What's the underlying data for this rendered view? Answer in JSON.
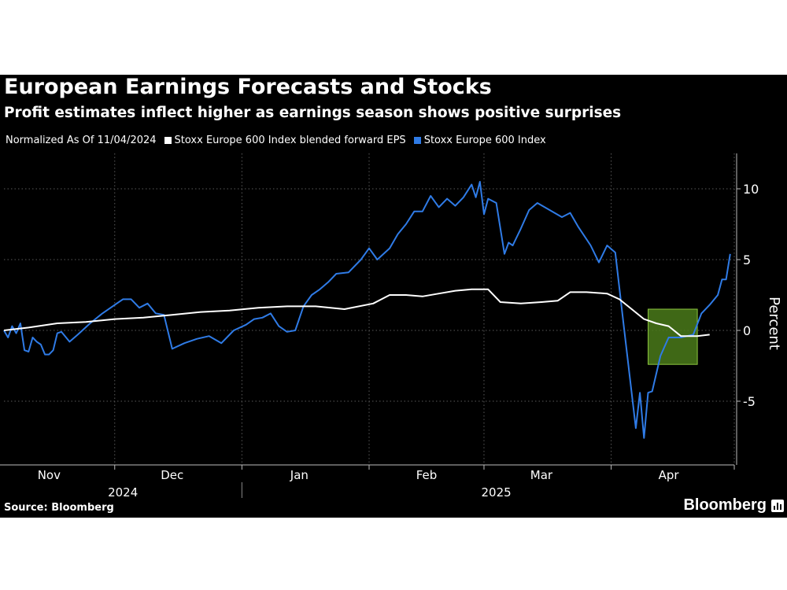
{
  "title": "European Earnings Forecasts and Stocks",
  "subtitle": "Profit estimates inflect higher as earnings season shows positive surprises",
  "legend": {
    "normalized_note": "Normalized As Of 11/04/2024",
    "items": [
      {
        "label": "Stoxx Europe 600 Index blended forward EPS",
        "color": "#ffffff"
      },
      {
        "label": "Stoxx Europe 600 Index",
        "color": "#2f7be6"
      }
    ]
  },
  "source": "Source: Bloomberg",
  "brand": "Bloomberg",
  "colors": {
    "background": "#000000",
    "eps_line": "#ffffff",
    "index_line": "#2f7be6",
    "highlight_fill": "#4a7a1a",
    "highlight_border": "#8cc63f"
  },
  "chart_data": {
    "type": "line",
    "ylabel": "Percent",
    "ylim": [
      -9.5,
      12.5
    ],
    "y_ticks": [
      10,
      5,
      0,
      -5
    ],
    "y_tick_labels": [
      "10",
      "5",
      "0",
      "-5"
    ],
    "x_unit": "date",
    "xlim": [
      "2024-11-04",
      "2025-05-01"
    ],
    "x_month_ticks": [
      {
        "label": "Nov",
        "date": "2024-11-15"
      },
      {
        "label": "Dec",
        "date": "2024-12-15"
      },
      {
        "label": "Jan",
        "date": "2025-01-15"
      },
      {
        "label": "Feb",
        "date": "2025-02-15"
      },
      {
        "label": "Mar",
        "date": "2025-03-15"
      },
      {
        "label": "Apr",
        "date": "2025-04-15"
      }
    ],
    "x_gridlines": [
      "2024-12-01",
      "2025-01-01",
      "2025-02-01",
      "2025-03-01",
      "2025-04-01",
      "2025-05-01"
    ],
    "x_years": [
      {
        "label": "2024",
        "date": "2024-12-03"
      },
      {
        "label": "2025",
        "date": "2025-03-04"
      }
    ],
    "highlight": {
      "x_start": "2025-04-10",
      "x_end": "2025-04-22",
      "y_min": -2.4,
      "y_max": 1.5
    },
    "series": [
      {
        "name": "Stoxx Europe 600 Index blended forward EPS",
        "color": "#ffffff",
        "points": [
          [
            "2024-11-04",
            0.0
          ],
          [
            "2024-11-10",
            0.2
          ],
          [
            "2024-11-17",
            0.5
          ],
          [
            "2024-11-24",
            0.6
          ],
          [
            "2024-12-01",
            0.8
          ],
          [
            "2024-12-08",
            0.9
          ],
          [
            "2024-12-15",
            1.1
          ],
          [
            "2024-12-22",
            1.3
          ],
          [
            "2024-12-29",
            1.4
          ],
          [
            "2025-01-05",
            1.6
          ],
          [
            "2025-01-12",
            1.7
          ],
          [
            "2025-01-19",
            1.7
          ],
          [
            "2025-01-26",
            1.5
          ],
          [
            "2025-02-02",
            1.9
          ],
          [
            "2025-02-06",
            2.5
          ],
          [
            "2025-02-10",
            2.5
          ],
          [
            "2025-02-14",
            2.4
          ],
          [
            "2025-02-18",
            2.6
          ],
          [
            "2025-02-22",
            2.8
          ],
          [
            "2025-02-26",
            2.9
          ],
          [
            "2025-03-02",
            2.9
          ],
          [
            "2025-03-05",
            2.0
          ],
          [
            "2025-03-10",
            1.9
          ],
          [
            "2025-03-15",
            2.0
          ],
          [
            "2025-03-19",
            2.1
          ],
          [
            "2025-03-22",
            2.7
          ],
          [
            "2025-03-26",
            2.7
          ],
          [
            "2025-03-31",
            2.6
          ],
          [
            "2025-04-03",
            2.2
          ],
          [
            "2025-04-06",
            1.5
          ],
          [
            "2025-04-09",
            0.8
          ],
          [
            "2025-04-12",
            0.5
          ],
          [
            "2025-04-15",
            0.3
          ],
          [
            "2025-04-18",
            -0.4
          ],
          [
            "2025-04-22",
            -0.4
          ],
          [
            "2025-04-25",
            -0.3
          ]
        ]
      },
      {
        "name": "Stoxx Europe 600 Index",
        "color": "#2f7be6",
        "points": [
          [
            "2024-11-04",
            0.0
          ],
          [
            "2024-11-05",
            -0.5
          ],
          [
            "2024-11-06",
            0.3
          ],
          [
            "2024-11-07",
            -0.2
          ],
          [
            "2024-11-08",
            0.5
          ],
          [
            "2024-11-09",
            -1.4
          ],
          [
            "2024-11-10",
            -1.5
          ],
          [
            "2024-11-11",
            -0.5
          ],
          [
            "2024-11-12",
            -0.8
          ],
          [
            "2024-11-13",
            -1.0
          ],
          [
            "2024-11-14",
            -1.7
          ],
          [
            "2024-11-15",
            -1.7
          ],
          [
            "2024-11-16",
            -1.4
          ],
          [
            "2024-11-17",
            -0.2
          ],
          [
            "2024-11-18",
            -0.1
          ],
          [
            "2024-11-20",
            -0.8
          ],
          [
            "2024-11-22",
            -0.3
          ],
          [
            "2024-11-25",
            0.5
          ],
          [
            "2024-11-28",
            1.2
          ],
          [
            "2024-12-01",
            1.8
          ],
          [
            "2024-12-03",
            2.2
          ],
          [
            "2024-12-05",
            2.2
          ],
          [
            "2024-12-07",
            1.6
          ],
          [
            "2024-12-09",
            1.9
          ],
          [
            "2024-12-11",
            1.2
          ],
          [
            "2024-12-13",
            1.1
          ],
          [
            "2024-12-15",
            -1.3
          ],
          [
            "2024-12-18",
            -0.9
          ],
          [
            "2024-12-21",
            -0.6
          ],
          [
            "2024-12-24",
            -0.4
          ],
          [
            "2024-12-27",
            -0.9
          ],
          [
            "2024-12-30",
            0.0
          ],
          [
            "2025-01-02",
            0.4
          ],
          [
            "2025-01-04",
            0.8
          ],
          [
            "2025-01-06",
            0.9
          ],
          [
            "2025-01-08",
            1.2
          ],
          [
            "2025-01-10",
            0.3
          ],
          [
            "2025-01-12",
            -0.1
          ],
          [
            "2025-01-14",
            0.0
          ],
          [
            "2025-01-16",
            1.7
          ],
          [
            "2025-01-18",
            2.5
          ],
          [
            "2025-01-20",
            2.9
          ],
          [
            "2025-01-22",
            3.4
          ],
          [
            "2025-01-24",
            4.0
          ],
          [
            "2025-01-27",
            4.1
          ],
          [
            "2025-01-30",
            5.0
          ],
          [
            "2025-02-01",
            5.8
          ],
          [
            "2025-02-03",
            5.0
          ],
          [
            "2025-02-06",
            5.8
          ],
          [
            "2025-02-08",
            6.8
          ],
          [
            "2025-02-10",
            7.5
          ],
          [
            "2025-02-12",
            8.4
          ],
          [
            "2025-02-14",
            8.4
          ],
          [
            "2025-02-16",
            9.5
          ],
          [
            "2025-02-18",
            8.7
          ],
          [
            "2025-02-20",
            9.3
          ],
          [
            "2025-02-22",
            8.8
          ],
          [
            "2025-02-24",
            9.4
          ],
          [
            "2025-02-26",
            10.3
          ],
          [
            "2025-02-27",
            9.4
          ],
          [
            "2025-02-28",
            10.5
          ],
          [
            "2025-03-01",
            8.2
          ],
          [
            "2025-03-02",
            9.3
          ],
          [
            "2025-03-04",
            9.0
          ],
          [
            "2025-03-06",
            5.4
          ],
          [
            "2025-03-07",
            6.2
          ],
          [
            "2025-03-08",
            6.0
          ],
          [
            "2025-03-10",
            7.2
          ],
          [
            "2025-03-12",
            8.5
          ],
          [
            "2025-03-14",
            9.0
          ],
          [
            "2025-03-17",
            8.5
          ],
          [
            "2025-03-20",
            8.0
          ],
          [
            "2025-03-22",
            8.3
          ],
          [
            "2025-03-24",
            7.3
          ],
          [
            "2025-03-27",
            6.0
          ],
          [
            "2025-03-29",
            4.8
          ],
          [
            "2025-03-31",
            6.0
          ],
          [
            "2025-04-02",
            5.5
          ],
          [
            "2025-04-04",
            0.5
          ],
          [
            "2025-04-07",
            -6.9
          ],
          [
            "2025-04-08",
            -4.4
          ],
          [
            "2025-04-09",
            -7.6
          ],
          [
            "2025-04-10",
            -4.4
          ],
          [
            "2025-04-11",
            -4.3
          ],
          [
            "2025-04-13",
            -1.8
          ],
          [
            "2025-04-15",
            -0.5
          ],
          [
            "2025-04-18",
            -0.5
          ],
          [
            "2025-04-21",
            -0.3
          ],
          [
            "2025-04-23",
            1.2
          ],
          [
            "2025-04-25",
            1.8
          ],
          [
            "2025-04-27",
            2.5
          ],
          [
            "2025-04-28",
            3.6
          ],
          [
            "2025-04-29",
            3.6
          ],
          [
            "2025-04-30",
            5.4
          ]
        ]
      }
    ]
  }
}
